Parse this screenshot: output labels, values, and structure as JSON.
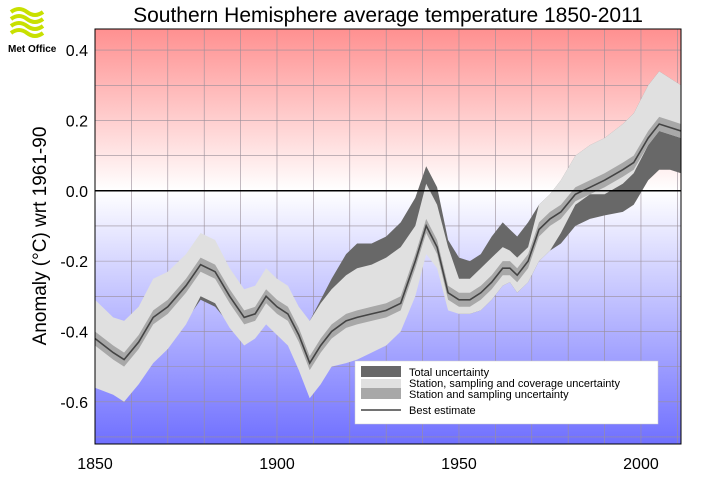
{
  "logo": {
    "text": "Met Office",
    "color": "#c8e000"
  },
  "chart_data": {
    "type": "area",
    "title": "Southern Hemisphere average temperature 1850-2011",
    "xlabel": "",
    "ylabel": "Anomaly (°C) wrt 1961-90",
    "xlim": [
      1850,
      2011
    ],
    "ylim": [
      -0.72,
      0.46
    ],
    "x_ticks": [
      "1850",
      "1900",
      "1950",
      "2000"
    ],
    "y_ticks": [
      "0.4",
      "0.2",
      "0.0",
      "-0.2",
      "-0.4",
      "-0.6"
    ],
    "grid": true,
    "legend_position": "bottom-right",
    "background": {
      "top_color": "#ff9090",
      "zero_color": "#ffffff",
      "bottom_color": "#7070ff"
    },
    "x": [
      1850,
      1855,
      1858,
      1862,
      1866,
      1870,
      1875,
      1879,
      1883,
      1887,
      1891,
      1894,
      1897,
      1900,
      1903,
      1906,
      1909,
      1912,
      1915,
      1919,
      1922,
      1926,
      1930,
      1934,
      1938,
      1941,
      1944,
      1947,
      1950,
      1953,
      1956,
      1959,
      1962,
      1964,
      1966,
      1969,
      1972,
      1975,
      1978,
      1982,
      1986,
      1990,
      1995,
      1998,
      2002,
      2005,
      2008,
      2011
    ],
    "series": [
      {
        "name": "Total uncertainty",
        "color": "#686868",
        "lower": [
          -0.43,
          -0.48,
          -0.5,
          -0.48,
          -0.44,
          -0.42,
          -0.37,
          -0.31,
          -0.33,
          -0.38,
          -0.41,
          -0.4,
          -0.36,
          -0.39,
          -0.42,
          -0.47,
          -0.52,
          -0.5,
          -0.48,
          -0.45,
          -0.43,
          -0.42,
          -0.41,
          -0.35,
          -0.27,
          -0.17,
          -0.2,
          -0.31,
          -0.35,
          -0.35,
          -0.34,
          -0.31,
          -0.27,
          -0.26,
          -0.29,
          -0.26,
          -0.2,
          -0.17,
          -0.15,
          -0.1,
          -0.08,
          -0.07,
          -0.06,
          -0.04,
          0.03,
          0.06,
          0.06,
          0.05
        ],
        "upper": [
          -0.33,
          -0.38,
          -0.39,
          -0.35,
          -0.27,
          -0.25,
          -0.2,
          -0.13,
          -0.15,
          -0.23,
          -0.29,
          -0.28,
          -0.23,
          -0.26,
          -0.29,
          -0.34,
          -0.37,
          -0.31,
          -0.25,
          -0.18,
          -0.15,
          -0.15,
          -0.13,
          -0.09,
          -0.02,
          0.07,
          0.01,
          -0.14,
          -0.19,
          -0.2,
          -0.18,
          -0.13,
          -0.09,
          -0.11,
          -0.13,
          -0.09,
          -0.04,
          -0.01,
          0.03,
          0.1,
          0.13,
          0.15,
          0.19,
          0.22,
          0.3,
          0.34,
          0.32,
          0.3
        ]
      },
      {
        "name": "Station, sampling and coverage uncertainty",
        "color": "#e0e0e0",
        "lower": [
          -0.56,
          -0.58,
          -0.6,
          -0.55,
          -0.49,
          -0.45,
          -0.38,
          -0.3,
          -0.32,
          -0.39,
          -0.44,
          -0.42,
          -0.38,
          -0.41,
          -0.44,
          -0.51,
          -0.59,
          -0.55,
          -0.5,
          -0.49,
          -0.48,
          -0.46,
          -0.44,
          -0.4,
          -0.3,
          -0.18,
          -0.22,
          -0.34,
          -0.35,
          -0.35,
          -0.34,
          -0.31,
          -0.27,
          -0.26,
          -0.29,
          -0.26,
          -0.2,
          -0.17,
          -0.12,
          -0.04,
          -0.01,
          -0.01,
          0.02,
          0.05,
          0.13,
          0.17,
          0.16,
          0.15
        ],
        "upper": [
          -0.31,
          -0.36,
          -0.37,
          -0.33,
          -0.25,
          -0.23,
          -0.18,
          -0.12,
          -0.14,
          -0.22,
          -0.28,
          -0.27,
          -0.22,
          -0.25,
          -0.27,
          -0.33,
          -0.37,
          -0.32,
          -0.28,
          -0.24,
          -0.22,
          -0.21,
          -0.19,
          -0.16,
          -0.1,
          0.02,
          -0.04,
          -0.16,
          -0.25,
          -0.25,
          -0.22,
          -0.19,
          -0.16,
          -0.17,
          -0.19,
          -0.16,
          -0.04,
          -0.01,
          0.03,
          0.1,
          0.13,
          0.15,
          0.19,
          0.22,
          0.3,
          0.34,
          0.32,
          0.3
        ]
      },
      {
        "name": "Station and sampling uncertainty",
        "color": "#a8a8a8",
        "lower": [
          -0.44,
          -0.48,
          -0.5,
          -0.45,
          -0.38,
          -0.35,
          -0.29,
          -0.23,
          -0.25,
          -0.32,
          -0.38,
          -0.37,
          -0.32,
          -0.35,
          -0.37,
          -0.43,
          -0.51,
          -0.46,
          -0.42,
          -0.39,
          -0.38,
          -0.37,
          -0.36,
          -0.34,
          -0.22,
          -0.12,
          -0.18,
          -0.31,
          -0.33,
          -0.33,
          -0.31,
          -0.28,
          -0.24,
          -0.24,
          -0.26,
          -0.22,
          -0.13,
          -0.1,
          -0.08,
          -0.03,
          -0.01,
          0.01,
          0.04,
          0.06,
          0.13,
          0.17,
          0.16,
          0.15
        ],
        "upper": [
          -0.4,
          -0.44,
          -0.46,
          -0.41,
          -0.34,
          -0.31,
          -0.25,
          -0.19,
          -0.21,
          -0.28,
          -0.34,
          -0.33,
          -0.28,
          -0.31,
          -0.33,
          -0.39,
          -0.47,
          -0.42,
          -0.38,
          -0.35,
          -0.34,
          -0.33,
          -0.32,
          -0.3,
          -0.18,
          -0.08,
          -0.14,
          -0.27,
          -0.29,
          -0.29,
          -0.27,
          -0.24,
          -0.2,
          -0.2,
          -0.22,
          -0.18,
          -0.09,
          -0.06,
          -0.04,
          0.01,
          0.03,
          0.05,
          0.08,
          0.1,
          0.17,
          0.21,
          0.2,
          0.19
        ]
      },
      {
        "name": "Best estimate",
        "color": "#444444",
        "values": [
          -0.42,
          -0.46,
          -0.48,
          -0.43,
          -0.36,
          -0.33,
          -0.27,
          -0.21,
          -0.23,
          -0.3,
          -0.36,
          -0.35,
          -0.3,
          -0.33,
          -0.35,
          -0.41,
          -0.49,
          -0.44,
          -0.4,
          -0.37,
          -0.36,
          -0.35,
          -0.34,
          -0.32,
          -0.2,
          -0.1,
          -0.16,
          -0.29,
          -0.31,
          -0.31,
          -0.29,
          -0.26,
          -0.22,
          -0.22,
          -0.24,
          -0.2,
          -0.11,
          -0.08,
          -0.06,
          -0.01,
          0.01,
          0.03,
          0.06,
          0.08,
          0.15,
          0.19,
          0.18,
          0.17
        ]
      }
    ]
  }
}
